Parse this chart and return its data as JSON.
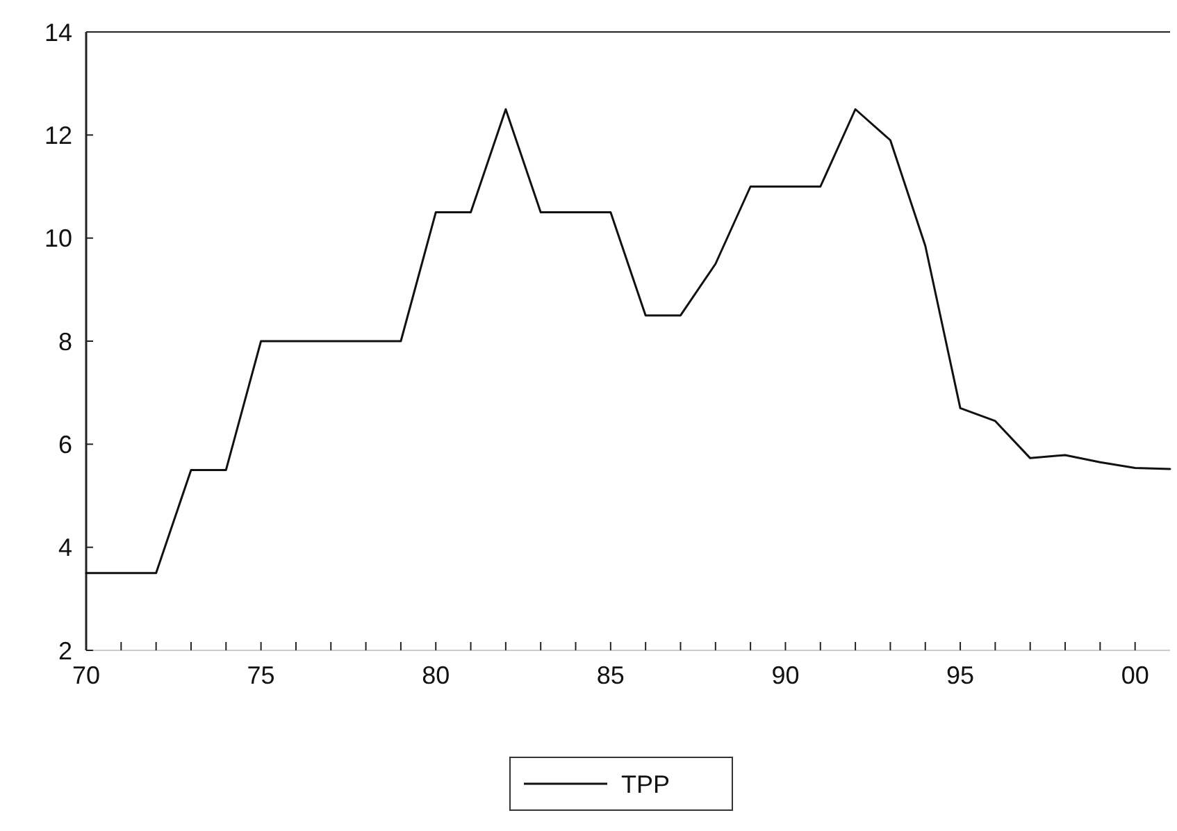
{
  "chart_data": {
    "type": "line",
    "x": [
      1970,
      1971,
      1972,
      1973,
      1974,
      1975,
      1976,
      1977,
      1978,
      1979,
      1980,
      1981,
      1982,
      1983,
      1984,
      1985,
      1986,
      1987,
      1988,
      1989,
      1990,
      1991,
      1992,
      1993,
      1994,
      1995,
      1996,
      1997,
      1998,
      1999,
      2000,
      2001
    ],
    "series": [
      {
        "name": "TPP",
        "color": "#111111",
        "values": [
          3.5,
          3.5,
          3.5,
          5.5,
          5.5,
          8,
          8,
          8,
          8,
          8,
          10.5,
          10.5,
          12.5,
          10.5,
          10.5,
          10.5,
          8.5,
          8.5,
          9.5,
          11,
          11,
          11,
          12.5,
          11.9,
          9.85,
          6.7,
          6.45,
          5.73,
          5.79,
          5.65,
          5.54,
          5.52
        ]
      }
    ],
    "xlim": [
      1970,
      2001
    ],
    "ylim": [
      2,
      14
    ],
    "xticks": [
      {
        "value": 1970,
        "label": "70"
      },
      {
        "value": 1971,
        "label": null
      },
      {
        "value": 1972,
        "label": null
      },
      {
        "value": 1973,
        "label": null
      },
      {
        "value": 1974,
        "label": null
      },
      {
        "value": 1975,
        "label": "75"
      },
      {
        "value": 1976,
        "label": null
      },
      {
        "value": 1977,
        "label": null
      },
      {
        "value": 1978,
        "label": null
      },
      {
        "value": 1979,
        "label": null
      },
      {
        "value": 1980,
        "label": "80"
      },
      {
        "value": 1981,
        "label": null
      },
      {
        "value": 1982,
        "label": null
      },
      {
        "value": 1983,
        "label": null
      },
      {
        "value": 1984,
        "label": null
      },
      {
        "value": 1985,
        "label": "85"
      },
      {
        "value": 1986,
        "label": null
      },
      {
        "value": 1987,
        "label": null
      },
      {
        "value": 1988,
        "label": null
      },
      {
        "value": 1989,
        "label": null
      },
      {
        "value": 1990,
        "label": "90"
      },
      {
        "value": 1991,
        "label": null
      },
      {
        "value": 1992,
        "label": null
      },
      {
        "value": 1993,
        "label": null
      },
      {
        "value": 1994,
        "label": null
      },
      {
        "value": 1995,
        "label": "95"
      },
      {
        "value": 1996,
        "label": null
      },
      {
        "value": 1997,
        "label": null
      },
      {
        "value": 1998,
        "label": null
      },
      {
        "value": 1999,
        "label": null
      },
      {
        "value": 2000,
        "label": "00"
      }
    ],
    "yticks": [
      2,
      4,
      6,
      8,
      10,
      12,
      14
    ],
    "grid": false,
    "legend": "bottom"
  }
}
